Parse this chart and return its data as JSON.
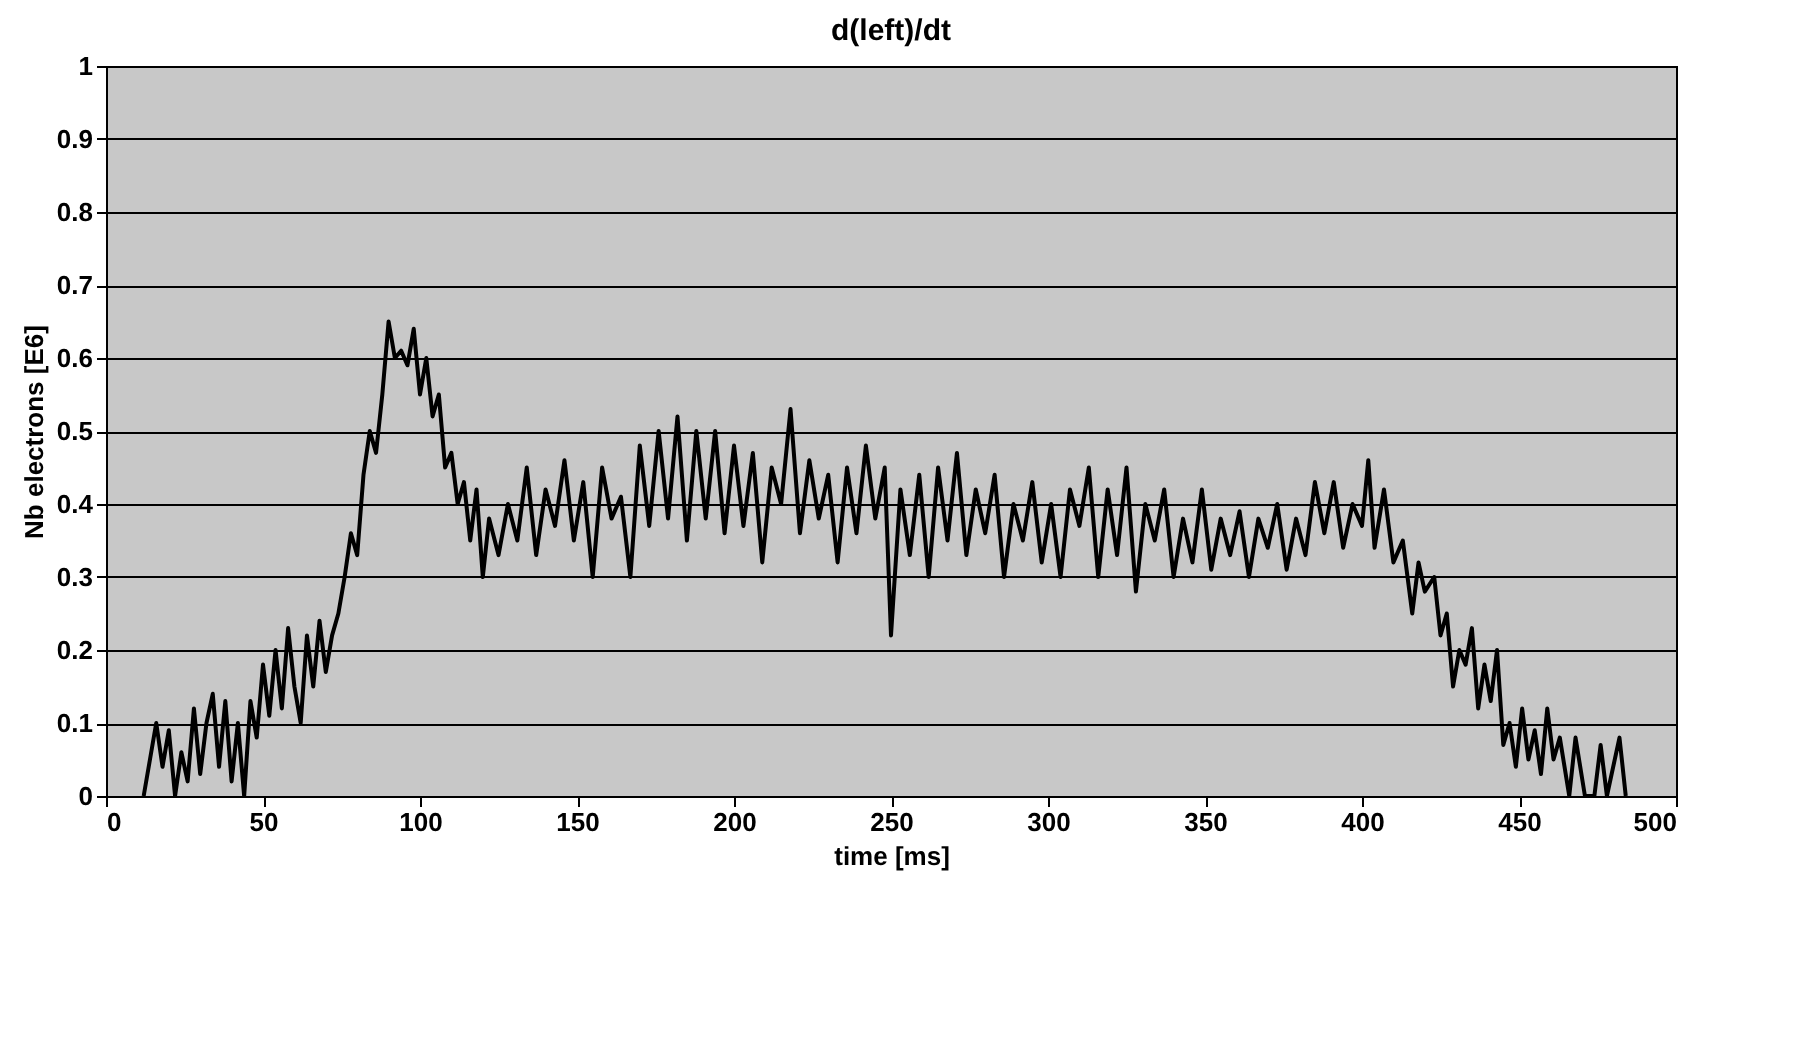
{
  "chart_data": {
    "type": "line",
    "title": "d(left)/dt",
    "xlabel": "time [ms]",
    "ylabel": "Nb electrons [E6]",
    "xlim": [
      0,
      500
    ],
    "xticks": [
      0,
      50,
      100,
      150,
      200,
      250,
      300,
      350,
      400,
      450,
      500
    ],
    "ylim": [
      0,
      1
    ],
    "yticks": [
      0,
      0.1,
      0.2,
      0.3,
      0.4,
      0.5,
      0.6,
      0.7,
      0.8,
      0.9,
      1
    ],
    "grid": "y",
    "marker": "none",
    "line_style": "solid",
    "series": [
      {
        "color": "#000000",
        "x": [
          12,
          14,
          16,
          18,
          20,
          22,
          24,
          26,
          28,
          30,
          32,
          34,
          36,
          38,
          40,
          42,
          44,
          46,
          48,
          50,
          52,
          54,
          56,
          58,
          60,
          62,
          64,
          66,
          68,
          70,
          72,
          74,
          76,
          78,
          80,
          82,
          84,
          86,
          88,
          90,
          92,
          94,
          96,
          98,
          100,
          102,
          104,
          106,
          108,
          110,
          112,
          114,
          116,
          118,
          120,
          122,
          125,
          128,
          131,
          134,
          137,
          140,
          143,
          146,
          149,
          152,
          155,
          158,
          161,
          164,
          167,
          170,
          173,
          176,
          179,
          182,
          185,
          188,
          191,
          194,
          197,
          200,
          203,
          206,
          209,
          212,
          215,
          218,
          221,
          224,
          227,
          230,
          233,
          236,
          239,
          242,
          245,
          248,
          250,
          253,
          256,
          259,
          262,
          265,
          268,
          271,
          274,
          277,
          280,
          283,
          286,
          289,
          292,
          295,
          298,
          301,
          304,
          307,
          310,
          313,
          316,
          319,
          322,
          325,
          328,
          331,
          334,
          337,
          340,
          343,
          346,
          349,
          352,
          355,
          358,
          361,
          364,
          367,
          370,
          373,
          376,
          379,
          382,
          385,
          388,
          391,
          394,
          397,
          400,
          402,
          404,
          407,
          410,
          413,
          416,
          418,
          420,
          423,
          425,
          427,
          429,
          431,
          433,
          435,
          437,
          439,
          441,
          443,
          445,
          447,
          449,
          451,
          453,
          455,
          457,
          459,
          461,
          463,
          466,
          468,
          471,
          474,
          476,
          478,
          482,
          484
        ],
        "values": [
          0,
          0.05,
          0.1,
          0.04,
          0.09,
          0,
          0.06,
          0.02,
          0.12,
          0.03,
          0.1,
          0.14,
          0.04,
          0.13,
          0.02,
          0.1,
          0,
          0.13,
          0.08,
          0.18,
          0.11,
          0.2,
          0.12,
          0.23,
          0.15,
          0.1,
          0.22,
          0.15,
          0.24,
          0.17,
          0.22,
          0.25,
          0.3,
          0.36,
          0.33,
          0.44,
          0.5,
          0.47,
          0.55,
          0.65,
          0.6,
          0.61,
          0.59,
          0.64,
          0.55,
          0.6,
          0.52,
          0.55,
          0.45,
          0.47,
          0.4,
          0.43,
          0.35,
          0.42,
          0.3,
          0.38,
          0.33,
          0.4,
          0.35,
          0.45,
          0.33,
          0.42,
          0.37,
          0.46,
          0.35,
          0.43,
          0.3,
          0.45,
          0.38,
          0.41,
          0.3,
          0.48,
          0.37,
          0.5,
          0.38,
          0.52,
          0.35,
          0.5,
          0.38,
          0.5,
          0.36,
          0.48,
          0.37,
          0.47,
          0.32,
          0.45,
          0.4,
          0.53,
          0.36,
          0.46,
          0.38,
          0.44,
          0.32,
          0.45,
          0.36,
          0.48,
          0.38,
          0.45,
          0.22,
          0.42,
          0.33,
          0.44,
          0.3,
          0.45,
          0.35,
          0.47,
          0.33,
          0.42,
          0.36,
          0.44,
          0.3,
          0.4,
          0.35,
          0.43,
          0.32,
          0.4,
          0.3,
          0.42,
          0.37,
          0.45,
          0.3,
          0.42,
          0.33,
          0.45,
          0.28,
          0.4,
          0.35,
          0.42,
          0.3,
          0.38,
          0.32,
          0.42,
          0.31,
          0.38,
          0.33,
          0.39,
          0.3,
          0.38,
          0.34,
          0.4,
          0.31,
          0.38,
          0.33,
          0.43,
          0.36,
          0.43,
          0.34,
          0.4,
          0.37,
          0.46,
          0.34,
          0.42,
          0.32,
          0.35,
          0.25,
          0.32,
          0.28,
          0.3,
          0.22,
          0.25,
          0.15,
          0.2,
          0.18,
          0.23,
          0.12,
          0.18,
          0.13,
          0.2,
          0.07,
          0.1,
          0.04,
          0.12,
          0.05,
          0.09,
          0.03,
          0.12,
          0.05,
          0.08,
          0,
          0.08,
          0,
          0,
          0.07,
          0,
          0.08,
          0
        ]
      }
    ]
  }
}
